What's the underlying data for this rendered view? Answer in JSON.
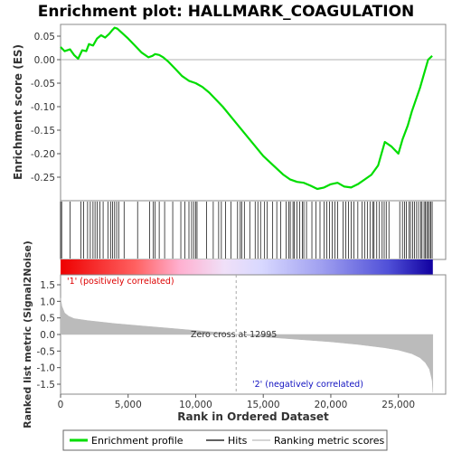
{
  "chart_data": {
    "type": "line",
    "title": "Enrichment plot: HALLMARK_COAGULATION",
    "top_panel": {
      "ylabel": "Enrichment score (ES)",
      "ylim": [
        -0.3,
        0.075
      ],
      "yticks": [
        0.05,
        0.0,
        -0.05,
        -0.1,
        -0.15,
        -0.2,
        -0.25
      ],
      "ytick_labels": [
        "0.05",
        "0.00",
        "-0.05",
        "-0.10",
        "-0.15",
        "-0.20",
        "-0.25"
      ],
      "es_curve": {
        "name": "Enrichment profile",
        "color": "#00dd00",
        "x": [
          0,
          300,
          700,
          1000,
          1300,
          1600,
          1900,
          2100,
          2400,
          2700,
          3000,
          3300,
          3600,
          3800,
          4000,
          4200,
          4500,
          5000,
          5500,
          6000,
          6500,
          6800,
          7000,
          7300,
          7600,
          8000,
          8500,
          9000,
          9500,
          10000,
          10500,
          11000,
          12000,
          13000,
          14000,
          15000,
          16000,
          16500,
          17000,
          17500,
          18000,
          18500,
          19000,
          19500,
          20000,
          20500,
          21000,
          21500,
          22000,
          22500,
          23000,
          23500,
          24000,
          24500,
          25000,
          25300,
          25700,
          26000,
          26300,
          26600,
          26900,
          27200,
          27500
        ],
        "y": [
          0.027,
          0.018,
          0.022,
          0.01,
          0.002,
          0.02,
          0.018,
          0.033,
          0.03,
          0.045,
          0.052,
          0.047,
          0.055,
          0.062,
          0.068,
          0.066,
          0.058,
          0.045,
          0.03,
          0.015,
          0.005,
          0.008,
          0.012,
          0.01,
          0.005,
          -0.005,
          -0.02,
          -0.035,
          -0.045,
          -0.05,
          -0.058,
          -0.07,
          -0.1,
          -0.135,
          -0.17,
          -0.205,
          -0.232,
          -0.245,
          -0.255,
          -0.26,
          -0.262,
          -0.268,
          -0.275,
          -0.272,
          -0.265,
          -0.262,
          -0.27,
          -0.272,
          -0.265,
          -0.255,
          -0.245,
          -0.225,
          -0.175,
          -0.185,
          -0.2,
          -0.17,
          -0.14,
          -0.11,
          -0.085,
          -0.06,
          -0.03,
          0.0,
          0.008
        ]
      },
      "hits": [
        0,
        80,
        700,
        1500,
        1700,
        2000,
        2200,
        2400,
        2550,
        2700,
        2900,
        3150,
        3500,
        3700,
        3850,
        4000,
        4150,
        4300,
        4700,
        5700,
        6600,
        6850,
        7000,
        7300,
        7700,
        8300,
        8900,
        9200,
        9500,
        9700,
        9850,
        10000,
        10100,
        10800,
        11300,
        11700,
        11900,
        12200,
        12600,
        13100,
        13300,
        13400,
        13600,
        14000,
        14400,
        14600,
        14800,
        15100,
        15300,
        15700,
        16000,
        16300,
        16700,
        16900,
        17000,
        17200,
        17300,
        17500,
        17700,
        17900,
        18000,
        18200,
        18600,
        18900,
        19200,
        19500,
        19700,
        19900,
        20100,
        20300,
        20500,
        20900,
        21100,
        21300,
        21500,
        21700,
        22000,
        22300,
        22500,
        22700,
        22900,
        23100,
        23200,
        23400,
        23600,
        23800,
        23950,
        24100,
        24300,
        25100,
        25300,
        25450,
        25600,
        25800,
        25900,
        26050,
        26200,
        26350,
        26500,
        26650,
        26750,
        26900,
        27000,
        27100,
        27200,
        27300,
        27400,
        27500
      ]
    },
    "bottom_panel": {
      "ylabel": "Ranked list metric (Signal2Noise)",
      "xlabel": "Rank in Ordered Dataset",
      "ylim": [
        -1.8,
        1.8
      ],
      "yticks": [
        1.5,
        1.0,
        0.5,
        0.0,
        -0.5,
        -1.0,
        -1.5
      ],
      "ytick_labels": [
        "1.5",
        "1.0",
        "0.5",
        "0.0",
        "-0.5",
        "-1.0",
        "-1.5"
      ],
      "xlim": [
        0,
        28500
      ],
      "xticks": [
        0,
        5000,
        10000,
        15000,
        20000,
        25000
      ],
      "xtick_labels": [
        "0",
        "5,000",
        "10,000",
        "15,000",
        "20,000",
        "25,000"
      ],
      "metric": {
        "name": "Ranking metric scores",
        "color": "#bbbbbb",
        "x": [
          0,
          100,
          300,
          600,
          1000,
          2000,
          4000,
          6000,
          8000,
          10000,
          12000,
          12995,
          15000,
          18000,
          20000,
          22000,
          24000,
          25000,
          26000,
          26600,
          27000,
          27300,
          27500,
          27550
        ],
        "y": [
          1.1,
          0.85,
          0.65,
          0.55,
          0.48,
          0.42,
          0.33,
          0.26,
          0.19,
          0.12,
          0.05,
          0.0,
          -0.07,
          -0.16,
          -0.22,
          -0.3,
          -0.4,
          -0.47,
          -0.58,
          -0.7,
          -0.85,
          -1.05,
          -1.4,
          -1.75
        ]
      },
      "zero_cross_rank": 12995,
      "zero_cross_label": "Zero cross at 12995",
      "pos_label": "'1' (positively correlated)",
      "neg_label": "'2' (negatively correlated)",
      "pos_color": "#dd0000",
      "neg_color": "#0000cc"
    },
    "legend": {
      "placement": "bottom",
      "items": [
        {
          "name": "Enrichment profile",
          "color": "#00dd00"
        },
        {
          "name": "Hits",
          "color": "#000000"
        },
        {
          "name": "Ranking metric scores",
          "color": "#bbbbbb"
        }
      ]
    }
  }
}
